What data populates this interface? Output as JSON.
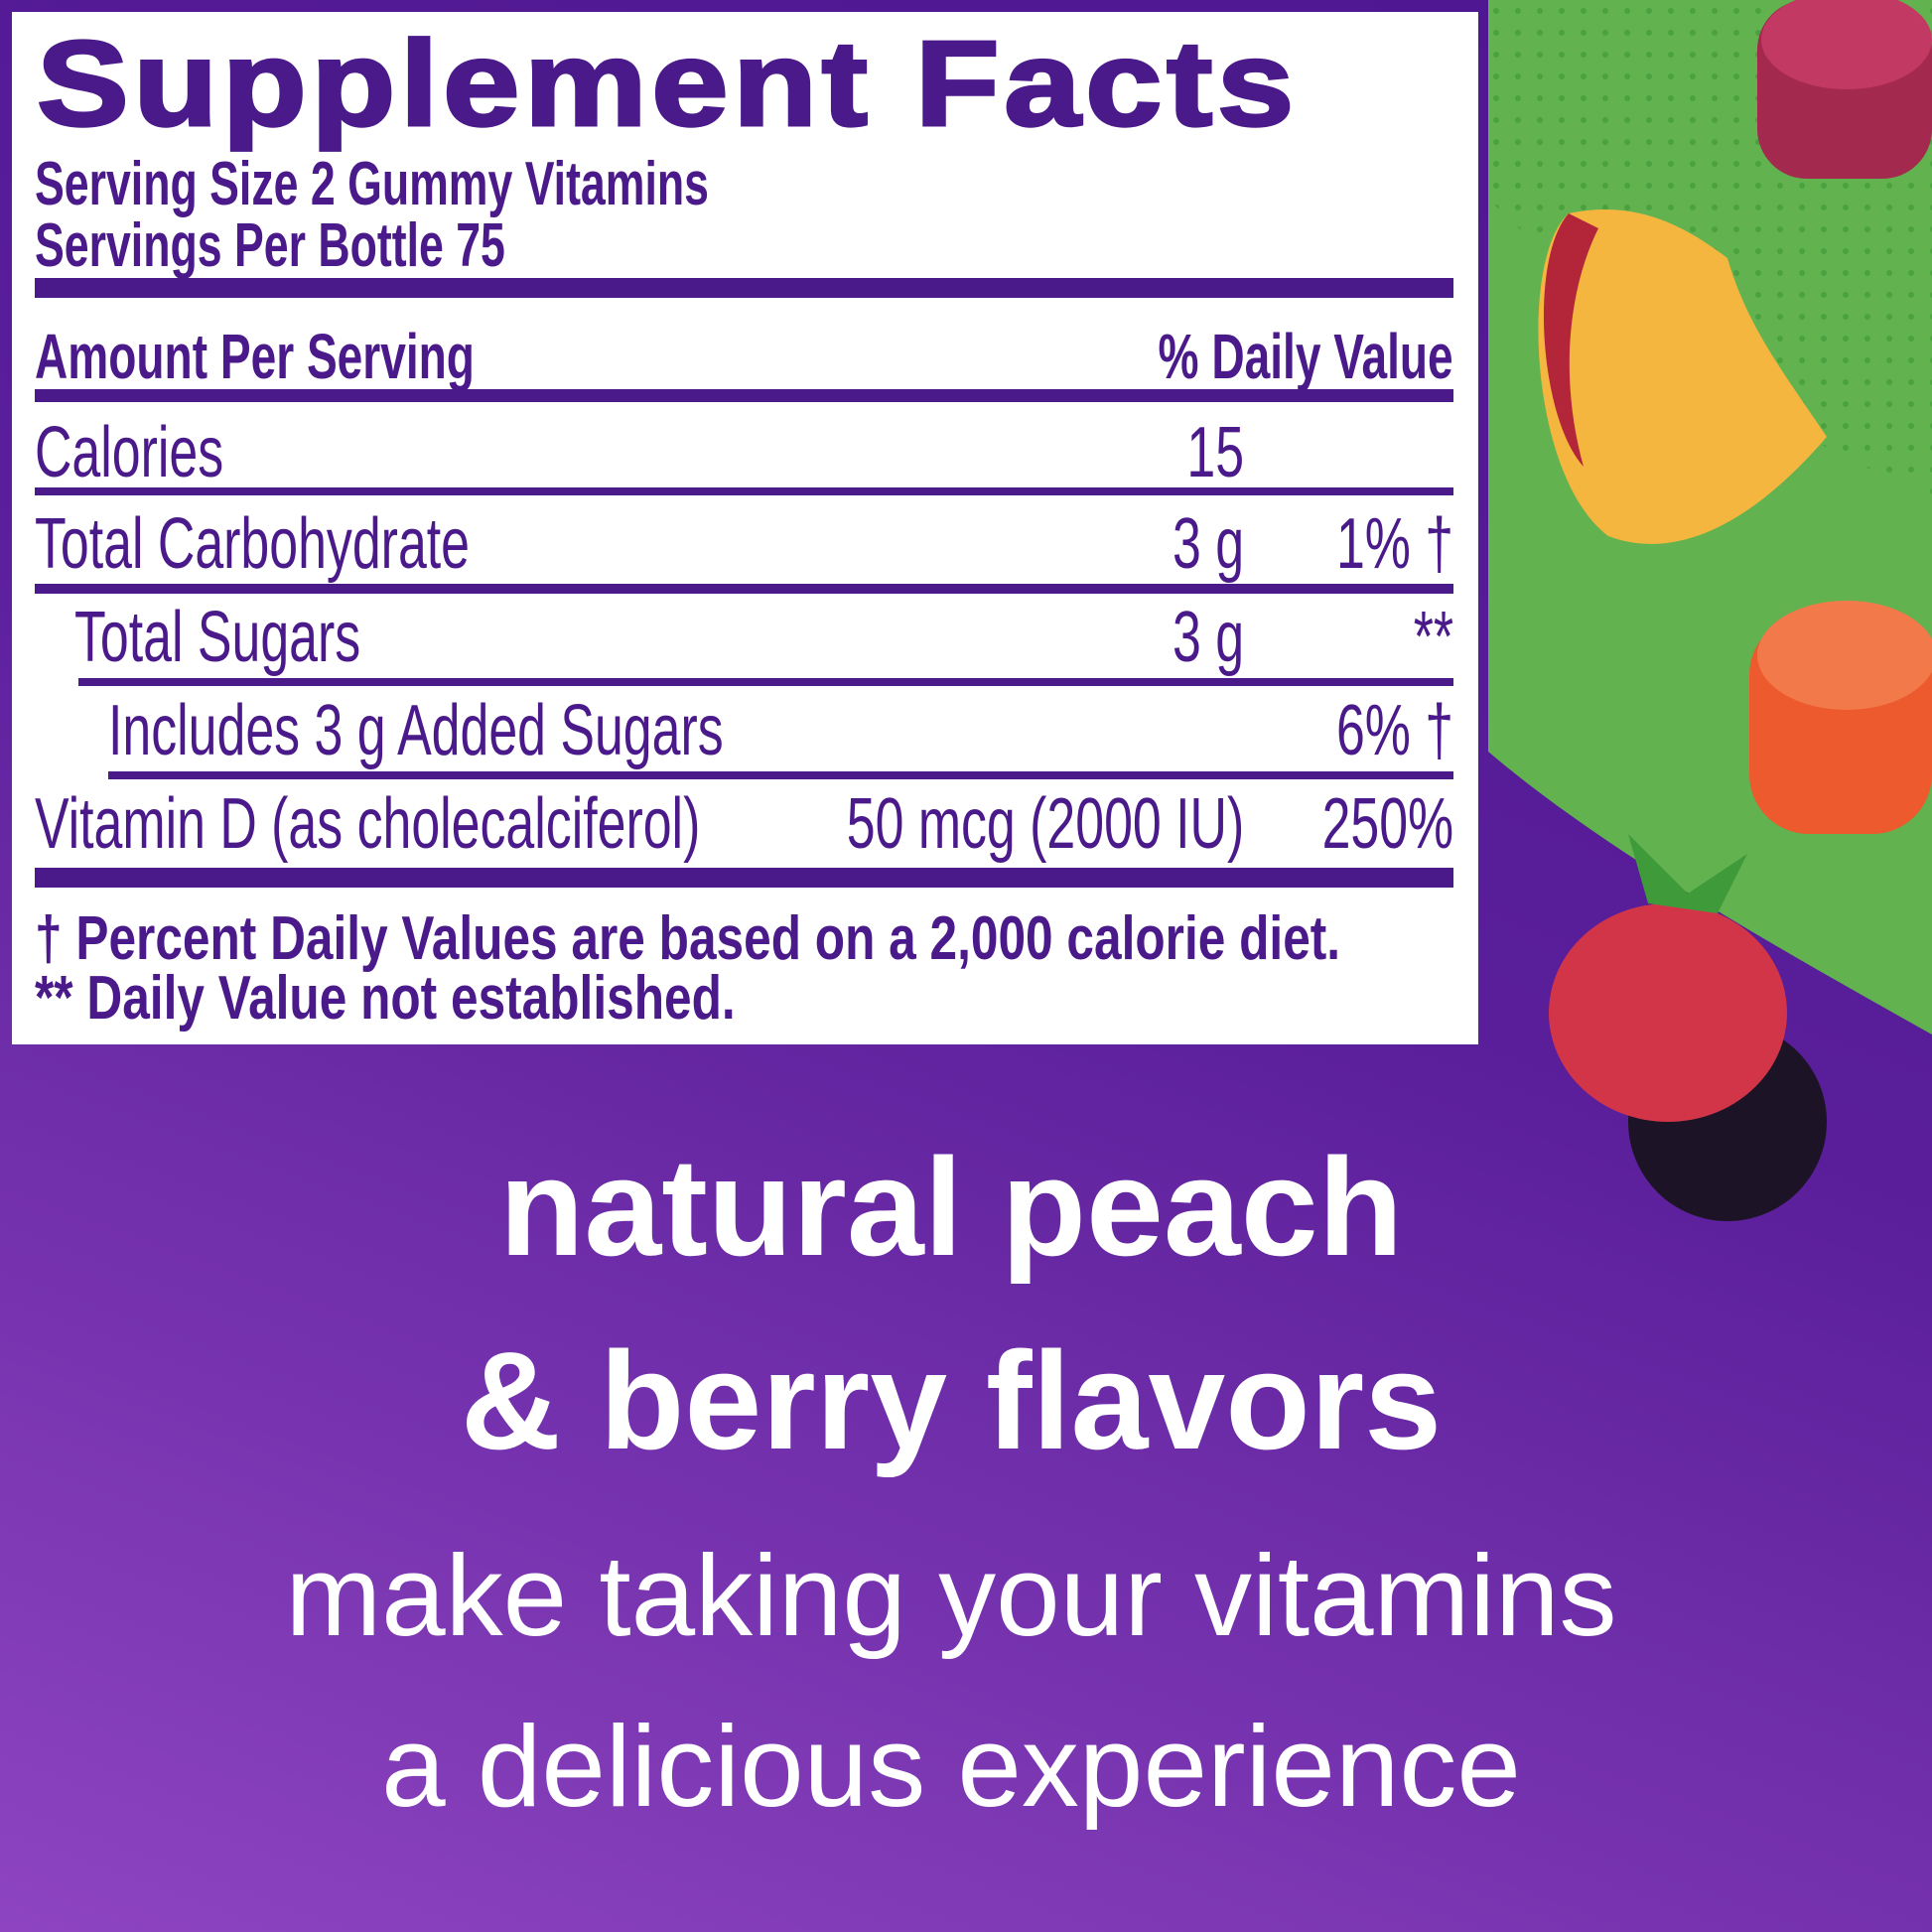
{
  "label": {
    "title": "Supplement Facts",
    "serving_size": "Serving Size 2 Gummy Vitamins",
    "servings_per": "Servings Per Bottle 75",
    "amount_header": "Amount Per Serving",
    "dv_header": "% Daily Value",
    "rows": [
      {
        "name": "Calories",
        "amount": "15",
        "dv": ""
      },
      {
        "name": "Total Carbohydrate",
        "amount": "3 g",
        "dv": "1% †"
      },
      {
        "name": "Total Sugars",
        "amount": "3 g",
        "dv": "**"
      },
      {
        "name": "Includes 3 g Added Sugars",
        "amount": "",
        "dv": "6% †"
      },
      {
        "name": "Vitamin D (as cholecalciferol)",
        "amount": "50 mcg (2000 IU)",
        "dv": "250%"
      }
    ],
    "footnote1": "† Percent Daily Values are based on a 2,000 calorie diet.",
    "footnote2": "** Daily Value not established."
  },
  "promo": {
    "line1": "natural peach",
    "line2": "& berry flavors",
    "line3": "make taking your vitamins",
    "line4": "a delicious experience"
  },
  "colors": {
    "purple": "#4b1a8a",
    "green": "#5cb04a",
    "background": "#5a1e9a"
  }
}
